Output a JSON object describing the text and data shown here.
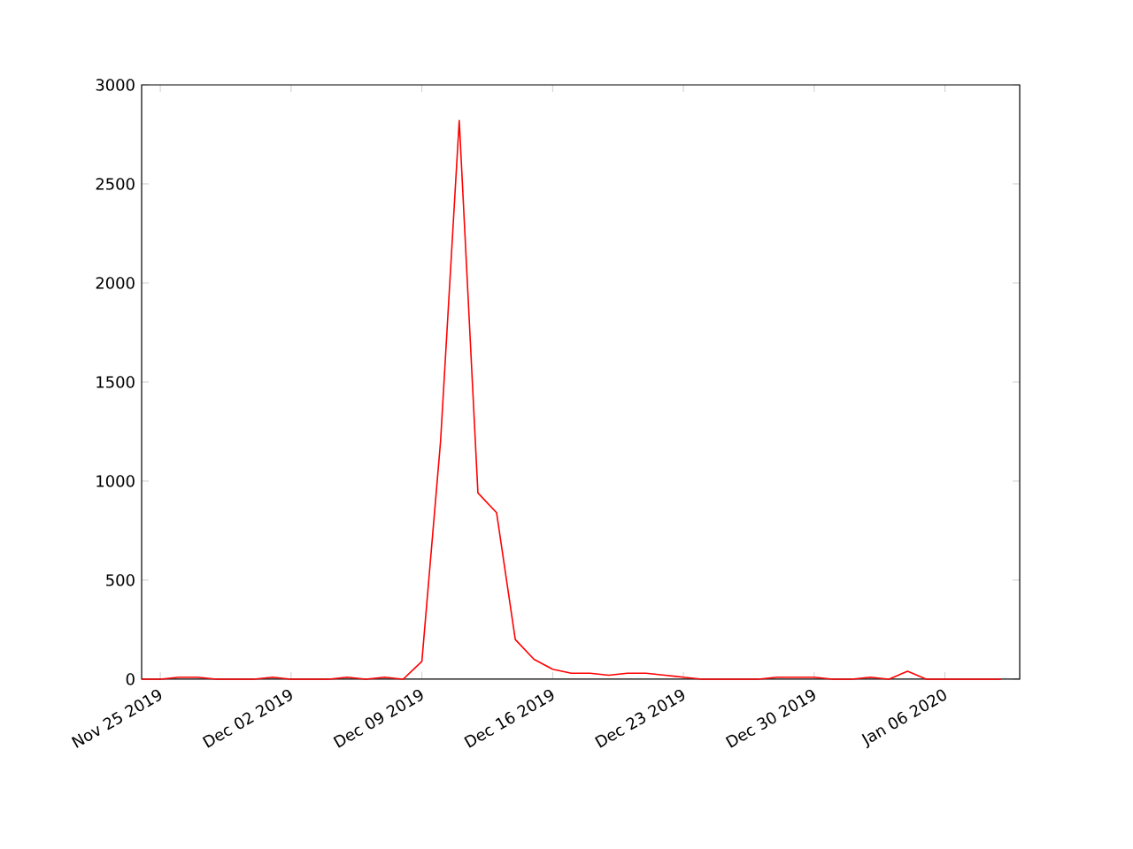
{
  "chart_data": {
    "type": "line",
    "x": [
      "2019-11-24",
      "2019-11-25",
      "2019-11-26",
      "2019-11-27",
      "2019-11-28",
      "2019-11-29",
      "2019-11-30",
      "2019-12-01",
      "2019-12-02",
      "2019-12-03",
      "2019-12-04",
      "2019-12-05",
      "2019-12-06",
      "2019-12-07",
      "2019-12-08",
      "2019-12-09",
      "2019-12-10",
      "2019-12-11",
      "2019-12-12",
      "2019-12-13",
      "2019-12-14",
      "2019-12-15",
      "2019-12-16",
      "2019-12-17",
      "2019-12-18",
      "2019-12-19",
      "2019-12-20",
      "2019-12-21",
      "2019-12-22",
      "2019-12-23",
      "2019-12-24",
      "2019-12-25",
      "2019-12-26",
      "2019-12-27",
      "2019-12-28",
      "2019-12-29",
      "2019-12-30",
      "2019-12-31",
      "2020-01-01",
      "2020-01-02",
      "2020-01-03",
      "2020-01-04",
      "2020-01-05",
      "2020-01-06",
      "2020-01-07",
      "2020-01-08",
      "2020-01-09"
    ],
    "values": [
      0,
      0,
      10,
      10,
      0,
      0,
      0,
      10,
      0,
      0,
      0,
      10,
      0,
      10,
      0,
      90,
      1200,
      2820,
      940,
      840,
      200,
      100,
      50,
      30,
      30,
      20,
      30,
      30,
      20,
      10,
      0,
      0,
      0,
      0,
      10,
      10,
      10,
      0,
      0,
      10,
      0,
      40,
      0,
      0,
      0,
      0,
      0
    ],
    "color": "#ff0000",
    "marker": "none",
    "line_style": "solid",
    "xlim": [
      "2019-11-24",
      "2020-01-10"
    ],
    "ylim": [
      0,
      3000
    ],
    "xticks": [
      {
        "value": "2019-11-25",
        "label": "Nov 25 2019"
      },
      {
        "value": "2019-12-02",
        "label": "Dec 02 2019"
      },
      {
        "value": "2019-12-09",
        "label": "Dec 09 2019"
      },
      {
        "value": "2019-12-16",
        "label": "Dec 16 2019"
      },
      {
        "value": "2019-12-23",
        "label": "Dec 23 2019"
      },
      {
        "value": "2019-12-30",
        "label": "Dec 30 2019"
      },
      {
        "value": "2020-01-06",
        "label": "Jan 06 2020"
      }
    ],
    "yticks": [
      0,
      500,
      1000,
      1500,
      2000,
      2500,
      3000
    ]
  }
}
